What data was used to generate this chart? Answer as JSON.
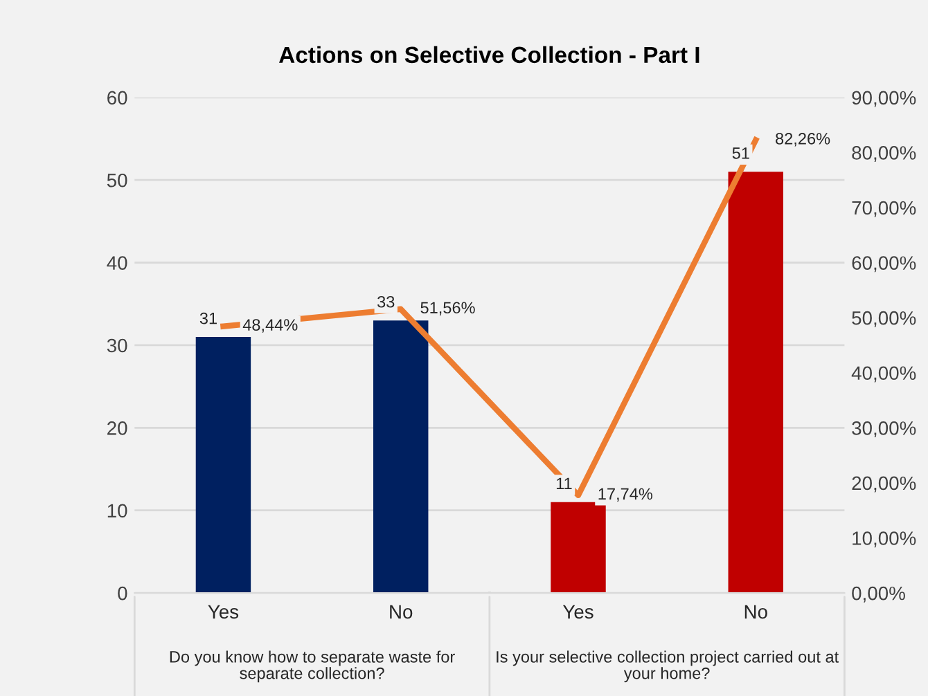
{
  "chart_data": {
    "type": "bar",
    "title": "Actions on Selective Collection - Part I",
    "categories": [
      "Yes",
      "No",
      "Yes",
      "No"
    ],
    "series": [
      {
        "type": "bar",
        "colors": [
          "#002060",
          "#002060",
          "#c00000",
          "#c00000"
        ],
        "values": [
          31,
          33,
          11,
          51
        ],
        "value_labels": [
          "31",
          "33",
          "11",
          "51"
        ]
      },
      {
        "type": "line",
        "axis": "y2",
        "color": "#ed7d31",
        "values": [
          48.44,
          51.56,
          17.74,
          82.26
        ],
        "value_labels": [
          "48,44%",
          "51,56%",
          "17,74%",
          "82,26%"
        ]
      }
    ],
    "ylim": [
      0,
      60
    ],
    "yticks": [
      0,
      10,
      20,
      30,
      40,
      50,
      60
    ],
    "y2lim": [
      0,
      90
    ],
    "y2ticks": [
      {
        "value": 0,
        "label": "0,00%"
      },
      {
        "value": 10,
        "label": "10,00%"
      },
      {
        "value": 20,
        "label": "20,00%"
      },
      {
        "value": 30,
        "label": "30,00%"
      },
      {
        "value": 40,
        "label": "40,00%"
      },
      {
        "value": 50,
        "label": "50,00%"
      },
      {
        "value": 60,
        "label": "60,00%"
      },
      {
        "value": 70,
        "label": "70,00%"
      },
      {
        "value": 80,
        "label": "80,00%"
      },
      {
        "value": 90,
        "label": "90,00%"
      }
    ],
    "grid": "y",
    "legend": false,
    "marker": "none",
    "line_style": "solid",
    "annotations": [
      "Do you know how to separate waste for\nseparate collection?",
      "Is your selective collection project carried out at\nyour home?"
    ]
  }
}
